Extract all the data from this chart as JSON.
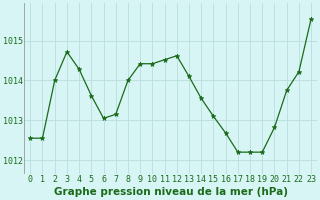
{
  "x": [
    0,
    1,
    2,
    3,
    4,
    5,
    6,
    7,
    8,
    9,
    10,
    11,
    12,
    13,
    14,
    15,
    16,
    17,
    18,
    19,
    20,
    21,
    22,
    23
  ],
  "y": [
    1012.55,
    1012.55,
    1014.0,
    1014.72,
    1014.28,
    1013.62,
    1013.05,
    1013.15,
    1014.0,
    1014.42,
    1014.42,
    1014.52,
    1014.62,
    1014.1,
    1013.55,
    1013.1,
    1012.68,
    1012.2,
    1012.2,
    1012.2,
    1012.82,
    1013.75,
    1014.22,
    1015.55
  ],
  "line_color": "#1a6b1a",
  "marker": "*",
  "marker_size": 3.5,
  "background_color": "#d8f5f5",
  "grid_color": "#b8dede",
  "xlabel": "Graphe pression niveau de la mer (hPa)",
  "xlabel_color": "#1a6b1a",
  "xlabel_fontsize": 7.5,
  "ytick_labels": [
    "1012",
    "1013",
    "1014",
    "1015"
  ],
  "ytick_values": [
    1012,
    1013,
    1014,
    1015
  ],
  "xticks": [
    0,
    1,
    2,
    3,
    4,
    5,
    6,
    7,
    8,
    9,
    10,
    11,
    12,
    13,
    14,
    15,
    16,
    17,
    18,
    19,
    20,
    21,
    22,
    23
  ],
  "ylim": [
    1011.65,
    1015.95
  ],
  "xlim": [
    -0.5,
    23.5
  ],
  "tick_color": "#1a6b1a",
  "tick_fontsize": 6.0
}
